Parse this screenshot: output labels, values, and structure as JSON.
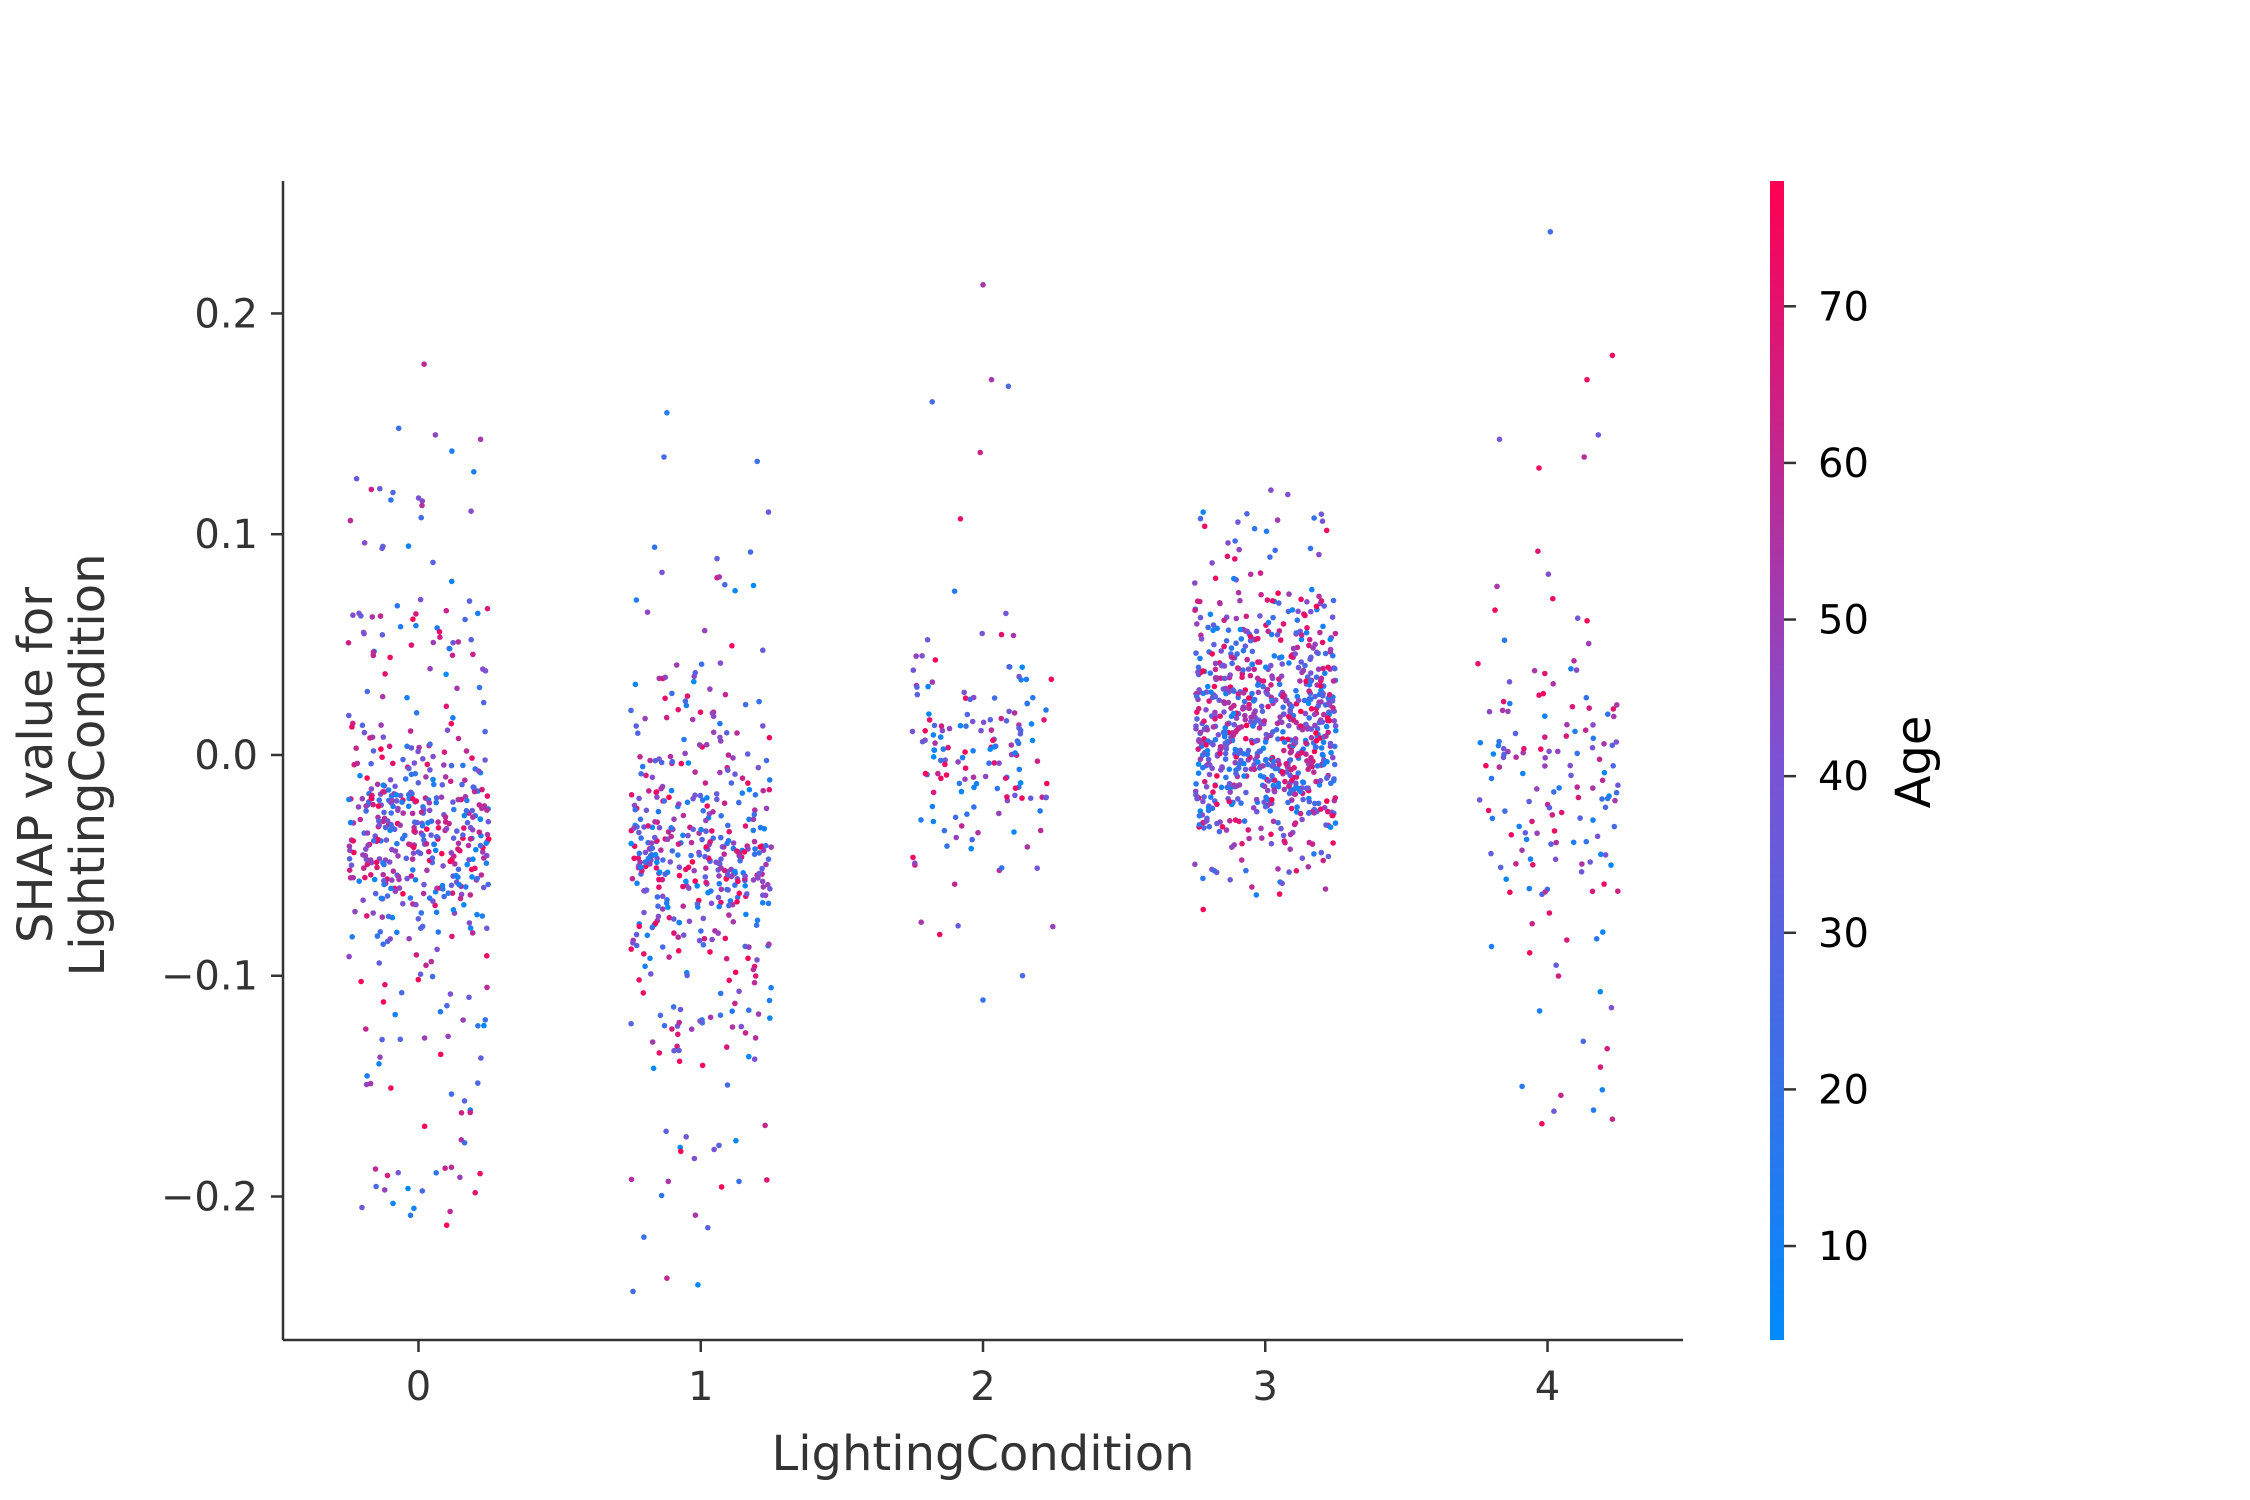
{
  "chart_data": {
    "type": "scatter",
    "title": "",
    "xlabel": "LightingCondition",
    "ylabel_lines": [
      "SHAP value for",
      "LightingCondition"
    ],
    "x_ticks": [
      "0",
      "1",
      "2",
      "3",
      "4"
    ],
    "y_ticks": [
      "0.2",
      "0.1",
      "0.0",
      "−0.1",
      "−0.2"
    ],
    "xlim": [
      -0.48,
      4.48
    ],
    "ylim": [
      -0.265,
      0.26
    ],
    "grid": false,
    "colorbar": {
      "label": "Age",
      "range": [
        4,
        78
      ],
      "ticks": [
        "10",
        "20",
        "30",
        "40",
        "50",
        "60",
        "70"
      ],
      "color_low": "#008afb",
      "color_mid": "#7c52d4",
      "color_high": "#ff0052"
    },
    "groups": [
      {
        "x": 0,
        "jitter": 0.25,
        "n": 520,
        "y_center": -0.035,
        "y_spread": 0.018,
        "tail_low": -0.21,
        "tail_high": 0.14,
        "tail_frac": 0.45,
        "outliers": [
          [
            0.02,
            0.177
          ],
          [
            0.06,
            0.145
          ],
          [
            -0.07,
            0.148
          ],
          [
            0.22,
            0.143
          ],
          [
            -0.2,
            -0.205
          ],
          [
            0.1,
            -0.213
          ]
        ]
      },
      {
        "x": 1,
        "jitter": 0.25,
        "n": 470,
        "y_center": -0.045,
        "y_spread": 0.02,
        "tail_low": -0.22,
        "tail_high": 0.1,
        "tail_frac": 0.48,
        "outliers": [
          [
            -0.24,
            -0.243
          ],
          [
            -0.12,
            -0.237
          ],
          [
            -0.01,
            -0.24
          ],
          [
            -0.13,
            0.135
          ],
          [
            -0.12,
            0.155
          ],
          [
            0.2,
            0.133
          ],
          [
            0.24,
            0.11
          ]
        ]
      },
      {
        "x": 2,
        "jitter": 0.25,
        "n": 150,
        "y_center": 0.0,
        "y_spread": 0.022,
        "tail_low": -0.1,
        "tail_high": 0.09,
        "tail_frac": 0.35,
        "outliers": [
          [
            0.0,
            0.213
          ],
          [
            0.03,
            0.17
          ],
          [
            0.09,
            0.167
          ],
          [
            -0.18,
            0.16
          ],
          [
            -0.01,
            0.137
          ],
          [
            -0.08,
            0.107
          ],
          [
            0.0,
            -0.111
          ],
          [
            0.14,
            -0.1
          ]
        ]
      },
      {
        "x": 3,
        "jitter": 0.25,
        "n": 820,
        "y_center": 0.012,
        "y_spread": 0.024,
        "tail_low": -0.065,
        "tail_high": 0.11,
        "tail_frac": 0.42,
        "outliers": [
          [
            0.02,
            0.12
          ],
          [
            0.08,
            0.118
          ],
          [
            -0.22,
            0.11
          ],
          [
            -0.22,
            -0.07
          ]
        ]
      },
      {
        "x": 4,
        "jitter": 0.25,
        "n": 150,
        "y_center": -0.015,
        "y_spread": 0.025,
        "tail_low": -0.165,
        "tail_high": 0.1,
        "tail_frac": 0.5,
        "outliers": [
          [
            0.01,
            0.237
          ],
          [
            0.23,
            0.181
          ],
          [
            0.18,
            0.145
          ],
          [
            0.14,
            0.17
          ],
          [
            -0.17,
            0.143
          ],
          [
            0.13,
            0.135
          ],
          [
            -0.03,
            0.13
          ],
          [
            -0.02,
            -0.167
          ],
          [
            0.23,
            -0.165
          ]
        ]
      }
    ]
  }
}
